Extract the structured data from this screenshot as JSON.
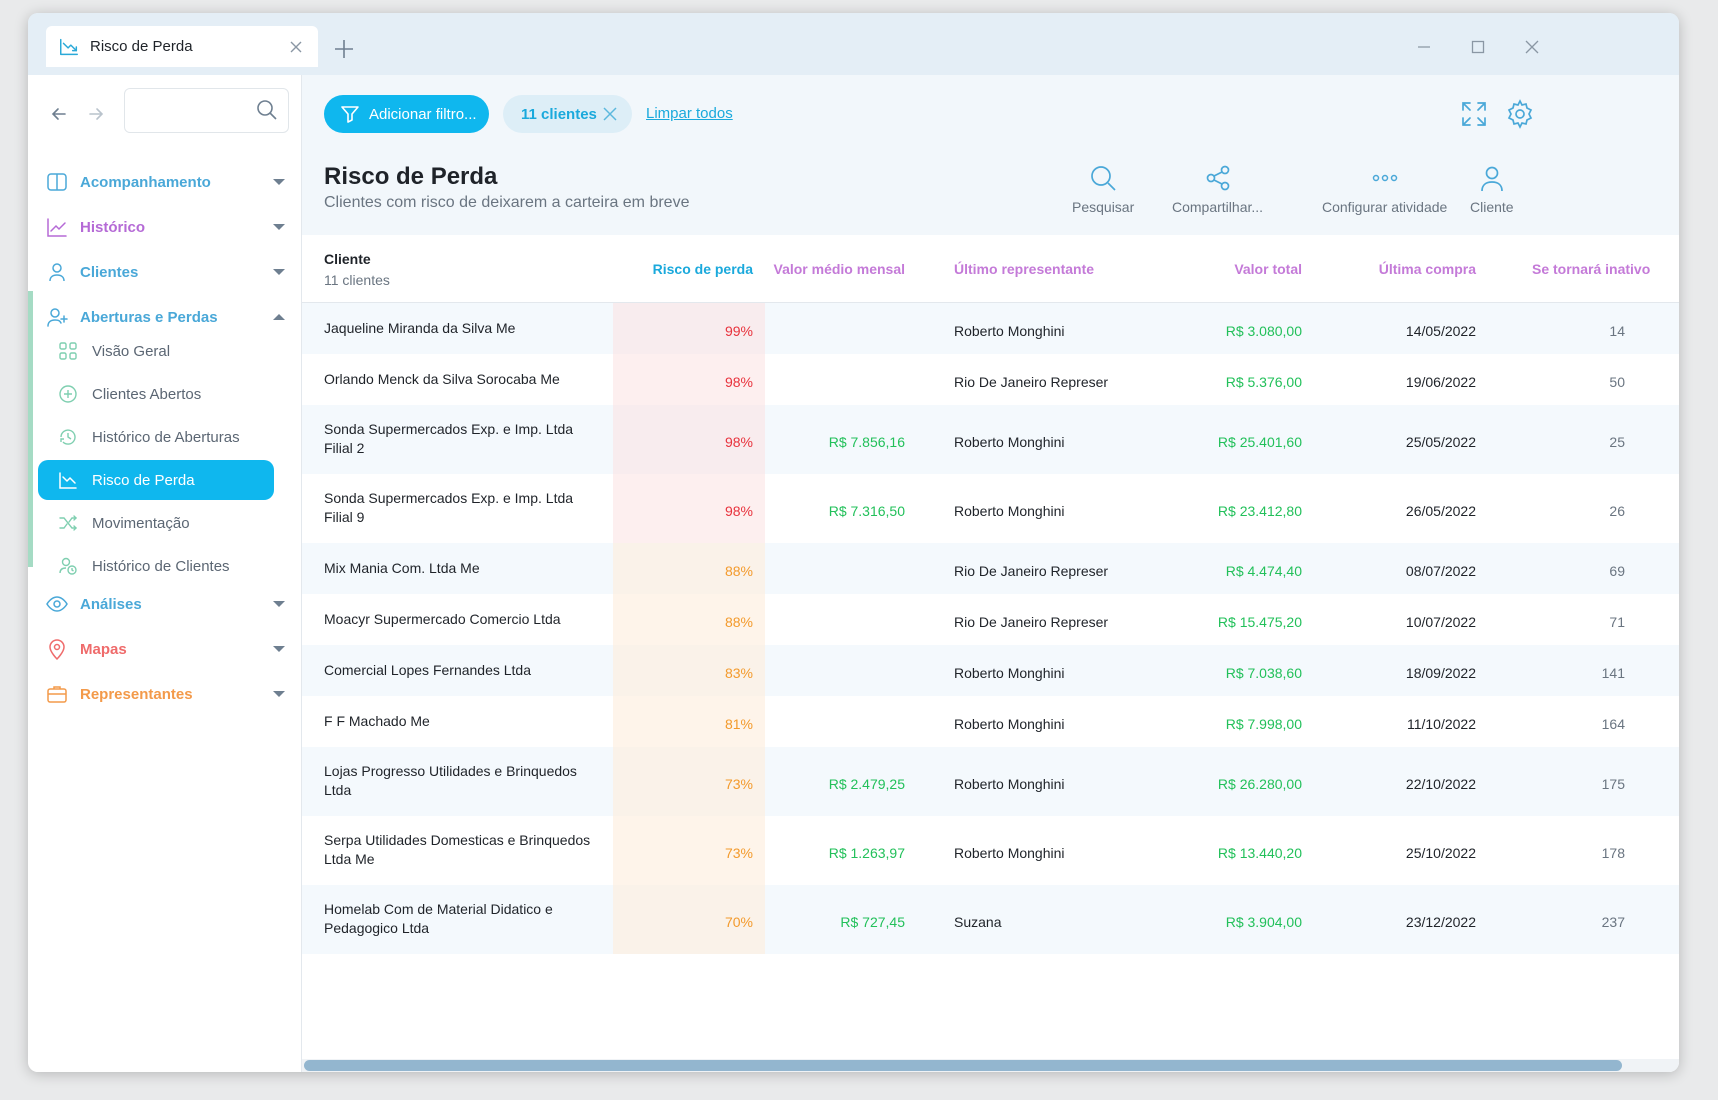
{
  "tab": {
    "title": "Risco de Perda"
  },
  "sidebar": {
    "search_placeholder": "",
    "groups": [
      {
        "label": "Acompanhamento",
        "color": "#4aa8d8",
        "icon": "book-icon"
      },
      {
        "label": "Histórico",
        "color": "#b56ad6",
        "icon": "chart-line-icon"
      },
      {
        "label": "Clientes",
        "color": "#4aa8d8",
        "icon": "user-icon"
      },
      {
        "label": "Aberturas e Perdas",
        "color": "#4aa8d8",
        "icon": "user-plus-icon"
      },
      {
        "label": "Análises",
        "color": "#4aa8d8",
        "icon": "eye-icon"
      },
      {
        "label": "Mapas",
        "color": "#ef6b6b",
        "icon": "map-pin-icon"
      },
      {
        "label": "Representantes",
        "color": "#f39a4a",
        "icon": "briefcase-icon"
      }
    ],
    "subitems": [
      {
        "label": "Visão Geral",
        "icon": "grid-icon"
      },
      {
        "label": "Clientes Abertos",
        "icon": "plus-circle-icon"
      },
      {
        "label": "Histórico de Aberturas",
        "icon": "history-icon"
      },
      {
        "label": "Risco de Perda",
        "icon": "trending-down-icon"
      },
      {
        "label": "Movimentação",
        "icon": "shuffle-icon"
      },
      {
        "label": "Histórico de Clientes",
        "icon": "users-history-icon"
      }
    ]
  },
  "toolbar": {
    "filter_label": "Adicionar filtro...",
    "chip_label": "11 clientes",
    "clear_label": "Limpar todos"
  },
  "page": {
    "title": "Risco de Perda",
    "subtitle": "Clientes com risco de deixarem a carteira em breve"
  },
  "actions": [
    {
      "label": "Pesquisar",
      "icon": "search-icon"
    },
    {
      "label": "Compartilhar...",
      "icon": "share-icon"
    },
    {
      "label": "Configurar atividade",
      "icon": "more-icon"
    },
    {
      "label": "Cliente",
      "icon": "user-icon"
    }
  ],
  "table": {
    "columns": {
      "client": "Cliente",
      "client_count": "11 clientes",
      "risk": "Risco de perda",
      "avg": "Valor médio mensal",
      "rep": "Último representante",
      "total": "Valor total",
      "date": "Última compra",
      "inactive": "Se tornará inativo"
    },
    "colors": {
      "risk_header": "#1aa9dc",
      "other_header": "#c47ad8",
      "money": "#22c05a",
      "risk_high": "#e8323c",
      "risk_mid": "#f39a2c"
    },
    "rows": [
      {
        "name": "Jaqueline Miranda da Silva Me",
        "risk": "99%",
        "avg": "",
        "rep": "Roberto Monghini",
        "total": "R$ 3.080,00",
        "date": "14/05/2022",
        "days": "14",
        "level": "high"
      },
      {
        "name": "Orlando Menck da Silva Sorocaba Me",
        "risk": "98%",
        "avg": "",
        "rep": "Rio De Janeiro Represer",
        "total": "R$ 5.376,00",
        "date": "19/06/2022",
        "days": "50",
        "level": "high"
      },
      {
        "name": "Sonda Supermercados Exp. e Imp. Ltda Filial 2",
        "risk": "98%",
        "avg": "R$ 7.856,16",
        "rep": "Roberto Monghini",
        "total": "R$ 25.401,60",
        "date": "25/05/2022",
        "days": "25",
        "level": "high"
      },
      {
        "name": "Sonda Supermercados Exp. e Imp. Ltda Filial 9",
        "risk": "98%",
        "avg": "R$ 7.316,50",
        "rep": "Roberto Monghini",
        "total": "R$ 23.412,80",
        "date": "26/05/2022",
        "days": "26",
        "level": "high"
      },
      {
        "name": "Mix Mania Com. Ltda Me",
        "risk": "88%",
        "avg": "",
        "rep": "Rio De Janeiro Represer",
        "total": "R$ 4.474,40",
        "date": "08/07/2022",
        "days": "69",
        "level": "mid"
      },
      {
        "name": "Moacyr Supermercado Comercio Ltda",
        "risk": "88%",
        "avg": "",
        "rep": "Rio De Janeiro Represer",
        "total": "R$ 15.475,20",
        "date": "10/07/2022",
        "days": "71",
        "level": "mid"
      },
      {
        "name": "Comercial Lopes Fernandes Ltda",
        "risk": "83%",
        "avg": "",
        "rep": "Roberto Monghini",
        "total": "R$ 7.038,60",
        "date": "18/09/2022",
        "days": "141",
        "level": "mid"
      },
      {
        "name": "F F Machado Me",
        "risk": "81%",
        "avg": "",
        "rep": "Roberto Monghini",
        "total": "R$ 7.998,00",
        "date": "11/10/2022",
        "days": "164",
        "level": "mid"
      },
      {
        "name": "Lojas Progresso Utilidades e Brinquedos Ltda",
        "risk": "73%",
        "avg": "R$ 2.479,25",
        "rep": "Roberto Monghini",
        "total": "R$ 26.280,00",
        "date": "22/10/2022",
        "days": "175",
        "level": "mid"
      },
      {
        "name": "Serpa Utilidades Domesticas e Brinquedos Ltda Me",
        "risk": "73%",
        "avg": "R$ 1.263,97",
        "rep": "Roberto Monghini",
        "total": "R$ 13.440,20",
        "date": "25/10/2022",
        "days": "178",
        "level": "mid"
      },
      {
        "name": "Homelab Com de Material Didatico e Pedagogico Ltda",
        "risk": "70%",
        "avg": "R$ 727,45",
        "rep": "Suzana",
        "total": "R$ 3.904,00",
        "date": "23/12/2022",
        "days": "237",
        "level": "mid"
      }
    ]
  }
}
